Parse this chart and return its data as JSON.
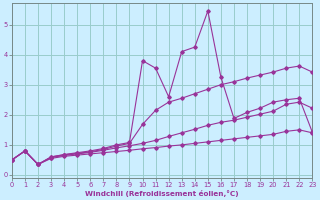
{
  "xlabel": "Windchill (Refroidissement éolien,°C)",
  "bg_color": "#cceeff",
  "line_color": "#993399",
  "grid_color": "#99cccc",
  "xlim": [
    0,
    23
  ],
  "ylim": [
    -0.1,
    5.7
  ],
  "yticks": [
    0,
    1,
    2,
    3,
    4,
    5
  ],
  "xticks": [
    0,
    1,
    2,
    3,
    4,
    5,
    6,
    7,
    8,
    9,
    10,
    11,
    12,
    13,
    14,
    15,
    16,
    17,
    18,
    19,
    20,
    21,
    22,
    23
  ],
  "series": [
    [
      0.5,
      0.8,
      0.35,
      0.55,
      0.62,
      0.66,
      0.7,
      0.74,
      0.78,
      0.82,
      0.87,
      0.91,
      0.96,
      1.0,
      1.05,
      1.1,
      1.15,
      1.2,
      1.25,
      1.3,
      1.35,
      1.45,
      1.5,
      1.4
    ],
    [
      0.5,
      0.8,
      0.35,
      0.58,
      0.65,
      0.7,
      0.75,
      0.82,
      0.9,
      0.97,
      1.05,
      1.15,
      1.28,
      1.4,
      1.52,
      1.65,
      1.75,
      1.82,
      1.92,
      2.02,
      2.12,
      2.35,
      2.42,
      2.22
    ],
    [
      0.5,
      0.8,
      0.35,
      0.6,
      0.67,
      0.72,
      0.77,
      0.85,
      0.96,
      1.05,
      1.68,
      2.15,
      2.42,
      2.55,
      2.7,
      2.85,
      3.0,
      3.1,
      3.22,
      3.32,
      3.42,
      3.55,
      3.62,
      3.42
    ],
    [
      0.5,
      0.8,
      0.35,
      0.6,
      0.68,
      0.74,
      0.8,
      0.88,
      1.0,
      1.08,
      3.8,
      3.55,
      2.6,
      4.1,
      4.25,
      5.45,
      3.25,
      1.88,
      2.08,
      2.22,
      2.42,
      2.5,
      2.55,
      1.42
    ]
  ]
}
